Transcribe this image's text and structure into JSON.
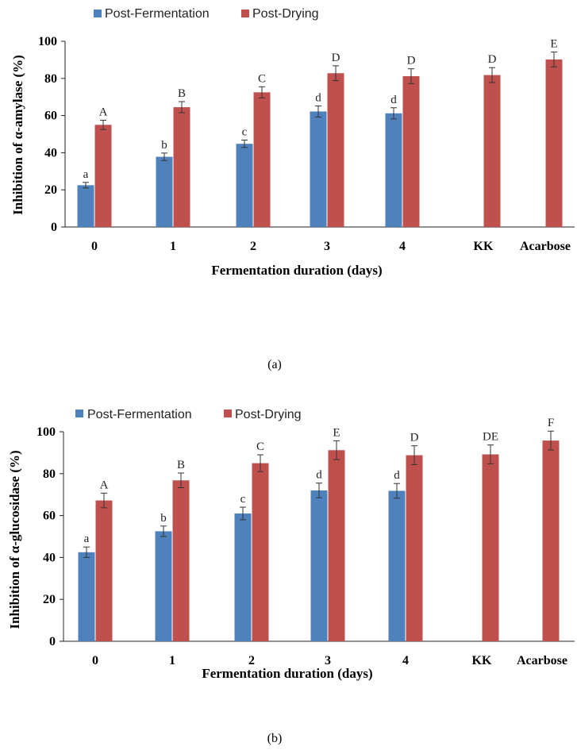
{
  "colors": {
    "post_fermentation": "#4f81bd",
    "post_drying": "#c0504d",
    "axis": "#222222",
    "error": "#333333"
  },
  "chart_data": [
    {
      "type": "bar",
      "panel_label": "(a)",
      "xlabel": "Fermentation duration (days)",
      "ylabel": "Inhibition of α-amylase (%)",
      "ylim": [
        0,
        100
      ],
      "yticks": [
        "0",
        "20",
        "40",
        "60",
        "80",
        "100"
      ],
      "legend_position": "top-left",
      "categories": [
        "0",
        "1",
        "2",
        "3",
        "4",
        "KK",
        "Acarbose"
      ],
      "series": [
        {
          "name": "Post-Fermentation",
          "values": [
            22.5,
            37.8,
            44.8,
            62.2,
            61.2,
            null,
            null
          ],
          "errors": [
            1.5,
            2.0,
            2.0,
            3.0,
            3.0,
            null,
            null
          ],
          "letters": [
            "a",
            "b",
            "c",
            "d",
            "d",
            "",
            ""
          ]
        },
        {
          "name": "Post-Drying",
          "values": [
            55.0,
            64.5,
            72.5,
            82.8,
            81.2,
            81.8,
            90.2
          ],
          "errors": [
            2.5,
            3.0,
            3.0,
            4.0,
            4.0,
            4.0,
            4.0
          ],
          "letters": [
            "A",
            "B",
            "C",
            "D",
            "D",
            "D",
            "E"
          ]
        }
      ]
    },
    {
      "type": "bar",
      "panel_label": "(b)",
      "xlabel": "Fermentation duration (days)",
      "ylabel": "Inhibition of α-glucosidase (%)",
      "ylim": [
        0,
        100
      ],
      "yticks": [
        "0",
        "20",
        "40",
        "60",
        "80",
        "100"
      ],
      "legend_position": "top-left",
      "categories": [
        "0",
        "1",
        "2",
        "3",
        "4",
        "KK",
        "Acarbose"
      ],
      "series": [
        {
          "name": "Post-Fermentation",
          "values": [
            42.5,
            52.5,
            61.0,
            72.0,
            71.8,
            null,
            null
          ],
          "errors": [
            2.5,
            2.5,
            3.0,
            3.5,
            3.5,
            null,
            null
          ],
          "letters": [
            "a",
            "b",
            "c",
            "d",
            "d",
            "",
            ""
          ]
        },
        {
          "name": "Post-Drying",
          "values": [
            67.2,
            76.8,
            85.0,
            91.2,
            88.8,
            89.2,
            95.8
          ],
          "errors": [
            3.5,
            3.5,
            4.0,
            4.5,
            4.5,
            4.5,
            4.5
          ],
          "letters": [
            "A",
            "B",
            "C",
            "E",
            "D",
            "DE",
            "F"
          ]
        }
      ]
    }
  ]
}
